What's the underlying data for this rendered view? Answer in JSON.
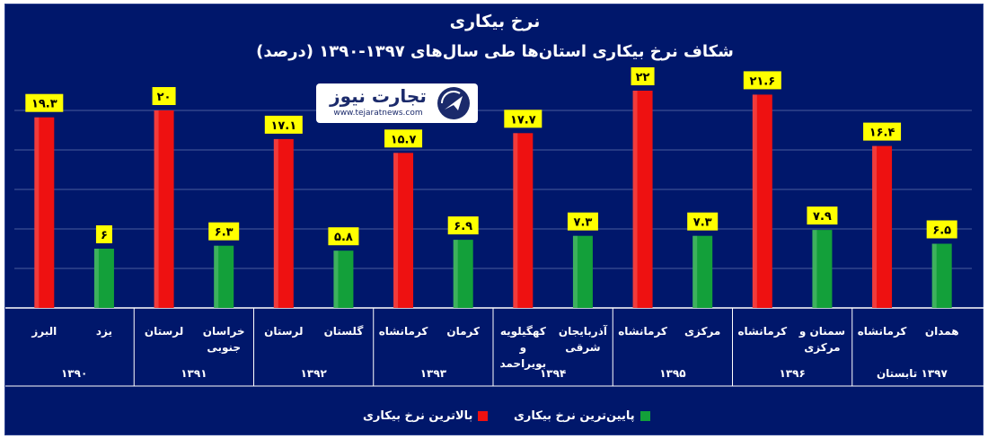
{
  "title": "نرخ بیکاری",
  "subtitle": "شکاف نرخ  بیکاری استان‌ها طی سال‌های ۱۳۹۷-۱۳۹۰ (درصد)",
  "logo": {
    "name": "تجارت نیوز",
    "url": "www.tejaratnews.com",
    "icon": "tejarat-news-logo-icon"
  },
  "colors": {
    "max": "#ee1111",
    "min": "#13a03a",
    "label_bg": "#ffff00",
    "panel": "#00176b"
  },
  "legend": {
    "max_label": "بالاترین نرخ بیکاری",
    "min_label": "پایین‌ترین نرخ بیکاری",
    "position": "bottom"
  },
  "chart_data": {
    "type": "bar",
    "grid": true,
    "ylim": [
      0,
      24
    ],
    "title": "شکاف نرخ  بیکاری استان‌ها طی سال‌های ۱۳۹۷-۱۳۹۰ (درصد)",
    "groups": [
      {
        "year": "۱۳۹۰",
        "max": {
          "province": "البرز",
          "value": 19.3,
          "label": "۱۹.۳"
        },
        "min": {
          "province": "یزد",
          "value": 6,
          "label": "۶"
        }
      },
      {
        "year": "۱۳۹۱",
        "max": {
          "province": "لرستان",
          "value": 20,
          "label": "۲۰"
        },
        "min": {
          "province": "خراسان جنوبی",
          "value": 6.3,
          "label": "۶.۳"
        }
      },
      {
        "year": "۱۳۹۲",
        "max": {
          "province": "لرستان",
          "value": 17.1,
          "label": "۱۷.۱"
        },
        "min": {
          "province": "گلستان",
          "value": 5.8,
          "label": "۵.۸"
        }
      },
      {
        "year": "۱۳۹۳",
        "max": {
          "province": "کرمانشاه",
          "value": 15.7,
          "label": "۱۵.۷"
        },
        "min": {
          "province": "کرمان",
          "value": 6.9,
          "label": "۶.۹"
        }
      },
      {
        "year": "۱۳۹۴",
        "max": {
          "province": "کهگیلویه و بویراحمد",
          "value": 17.7,
          "label": "۱۷.۷"
        },
        "min": {
          "province": "آذربایجان شرقی",
          "value": 7.3,
          "label": "۷.۳"
        }
      },
      {
        "year": "۱۳۹۵",
        "max": {
          "province": "کرمانشاه",
          "value": 22,
          "label": "۲۲"
        },
        "min": {
          "province": "مرکزی",
          "value": 7.3,
          "label": "۷.۳"
        }
      },
      {
        "year": "۱۳۹۶",
        "max": {
          "province": "کرمانشاه",
          "value": 21.6,
          "label": "۲۱.۶"
        },
        "min": {
          "province": "سمنان و مرکزی",
          "value": 7.9,
          "label": "۷.۹"
        }
      },
      {
        "year": "۱۳۹۷ تابستان",
        "max": {
          "province": "کرمانشاه",
          "value": 16.4,
          "label": "۱۶.۴"
        },
        "min": {
          "province": "همدان",
          "value": 6.5,
          "label": "۶.۵"
        }
      }
    ],
    "series": [
      {
        "name": "بالاترین نرخ بیکاری",
        "key": "max"
      },
      {
        "name": "پایین‌ترین نرخ بیکاری",
        "key": "min"
      }
    ]
  }
}
